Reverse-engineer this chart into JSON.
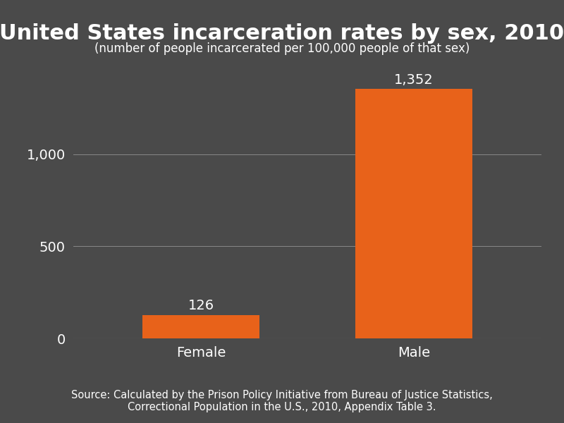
{
  "categories": [
    "Female",
    "Male"
  ],
  "values": [
    126,
    1352
  ],
  "bar_color": "#E8621A",
  "background_color": "#4a4a4a",
  "title": "United States incarceration rates by sex, 2010",
  "subtitle": "(number of people incarcerated per 100,000 people of that sex)",
  "source_text": "Source: Calculated by the Prison Policy Initiative from Bureau of Justice Statistics,\nCorrectional Population in the U.S., 2010, Appendix Table 3.",
  "yticks": [
    0,
    500,
    1000
  ],
  "ylim": [
    0,
    1480
  ],
  "title_fontsize": 22,
  "subtitle_fontsize": 12,
  "label_fontsize": 14,
  "value_label_fontsize": 14,
  "source_fontsize": 10.5,
  "text_color": "#ffffff",
  "grid_color": "#888888",
  "axis_color": "#888888"
}
